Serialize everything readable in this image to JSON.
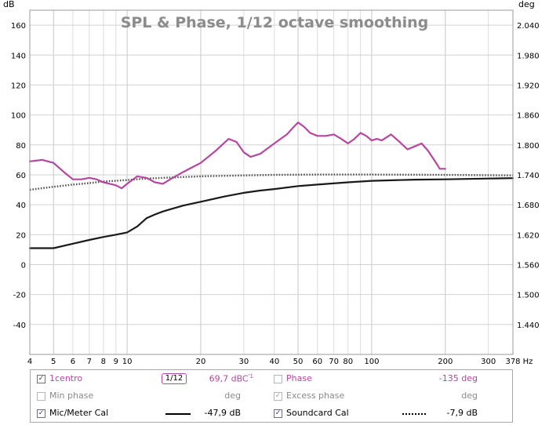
{
  "chart_data": {
    "type": "line",
    "title": "SPL & Phase, 1/12 octave smoothing",
    "ylabel_left": "dB",
    "ylabel_right": "deg",
    "xlabel_unit": "Hz",
    "x_scale": "log",
    "xlim": [
      4,
      378
    ],
    "ylim": [
      -60,
      170
    ],
    "ylim_right": [
      1.38,
      2.07
    ],
    "grid": true,
    "x_ticks": [
      4,
      5,
      6,
      7,
      8,
      9,
      10,
      20,
      30,
      40,
      50,
      60,
      70,
      80,
      100,
      200,
      300,
      378
    ],
    "x_tick_labels": [
      "4",
      "5",
      "6",
      "7",
      "8",
      "9",
      "10",
      "20",
      "30",
      "40",
      "50",
      "60",
      "70",
      "80",
      "100",
      "200",
      "300",
      "378"
    ],
    "y_ticks_left": [
      -40,
      -20,
      0,
      20,
      40,
      60,
      80,
      100,
      120,
      140,
      160
    ],
    "y_ticks_left_labels": [
      "-40",
      "-20",
      "0",
      "20",
      "40",
      "60",
      "80",
      "100",
      "120",
      "140",
      "160"
    ],
    "y_ticks_right": [
      1.44,
      1.5,
      1.56,
      1.62,
      1.68,
      1.74,
      1.8,
      1.86,
      1.92,
      1.98,
      2.04
    ],
    "y_ticks_right_labels": [
      "1.440",
      "1.500",
      "1.560",
      "1.620",
      "1.680",
      "1.740",
      "1.800",
      "1.860",
      "1.920",
      "1.980",
      "2.040"
    ],
    "series": [
      {
        "id": "1centro",
        "color": "#b4479f",
        "style": "solid",
        "x": [
          4,
          4.5,
          5,
          5.5,
          6,
          6.5,
          7,
          7.5,
          8,
          8.5,
          9,
          9.5,
          10,
          11,
          12,
          13,
          14,
          15,
          17,
          20,
          23,
          26,
          28,
          30,
          32,
          35,
          40,
          45,
          48,
          50,
          53,
          56,
          60,
          65,
          70,
          75,
          80,
          85,
          90,
          95,
          100,
          105,
          110,
          115,
          120,
          130,
          140,
          150,
          160,
          170,
          180,
          190,
          200
        ],
        "values": [
          69,
          70,
          68,
          62,
          57,
          57,
          58,
          57,
          55,
          54,
          53,
          51,
          54,
          59,
          58,
          55,
          54,
          57,
          62,
          68,
          76,
          84,
          82,
          75,
          72,
          74,
          81,
          87,
          92,
          95,
          92,
          88,
          86,
          86,
          87,
          84,
          81,
          84,
          88,
          86,
          83,
          84,
          83,
          85,
          87,
          82,
          77,
          79,
          81,
          76,
          70,
          64,
          64
        ]
      },
      {
        "id": "phase",
        "color": "#4a4a4a",
        "style": "dotted",
        "x": [
          4,
          5,
          6,
          7,
          8,
          10,
          12,
          15,
          20,
          30,
          40,
          60,
          100,
          200,
          378
        ],
        "values": [
          50,
          52,
          53.5,
          54.5,
          55.5,
          56.5,
          57.5,
          58.2,
          59,
          59.6,
          60,
          60.2,
          60.2,
          60,
          59.6
        ]
      },
      {
        "id": "mic-meter-cal",
        "color": "#1a1a1a",
        "style": "solid",
        "x": [
          4,
          4.5,
          5,
          6,
          7,
          8,
          9,
          10,
          11,
          12,
          13,
          14,
          15,
          17,
          20,
          25,
          30,
          35,
          40,
          50,
          60,
          80,
          100,
          150,
          200,
          300,
          378
        ],
        "values": [
          11,
          11,
          11,
          14,
          16.5,
          18.5,
          20,
          21.5,
          25.5,
          31,
          33.5,
          35.5,
          37,
          39.5,
          42,
          45.5,
          48,
          49.5,
          50.5,
          52.5,
          53.5,
          55,
          56,
          56.8,
          57,
          57.5,
          57.8
        ]
      }
    ]
  },
  "legend": {
    "rows": [
      {
        "left": {
          "checked": true,
          "state": "on",
          "label": "1centro",
          "color": "#b4479f"
        },
        "smoothing": "1/12",
        "left_value": "69,7 dBC",
        "left_value_suffix": "'1",
        "right": {
          "checked": false,
          "state": "off",
          "label": "Phase",
          "color": "#b4479f"
        },
        "right_value": "-135 deg"
      },
      {
        "left": {
          "checked": false,
          "state": "off",
          "label": "Min phase",
          "color": "#8a8a8a"
        },
        "left_value": "deg",
        "right": {
          "checked": true,
          "state": "dim",
          "label": "Excess phase",
          "color": "#8a8a8a"
        },
        "right_value": "deg"
      },
      {
        "left": {
          "checked": true,
          "state": "on",
          "label": "Mic/Meter Cal",
          "color": "#000000"
        },
        "left_value": "-47,9 dB",
        "right": {
          "checked": true,
          "state": "on",
          "label": "Soundcard Cal",
          "color": "#000000"
        },
        "right_value": "-7,9 dB"
      }
    ],
    "check_glyph": "✓"
  }
}
